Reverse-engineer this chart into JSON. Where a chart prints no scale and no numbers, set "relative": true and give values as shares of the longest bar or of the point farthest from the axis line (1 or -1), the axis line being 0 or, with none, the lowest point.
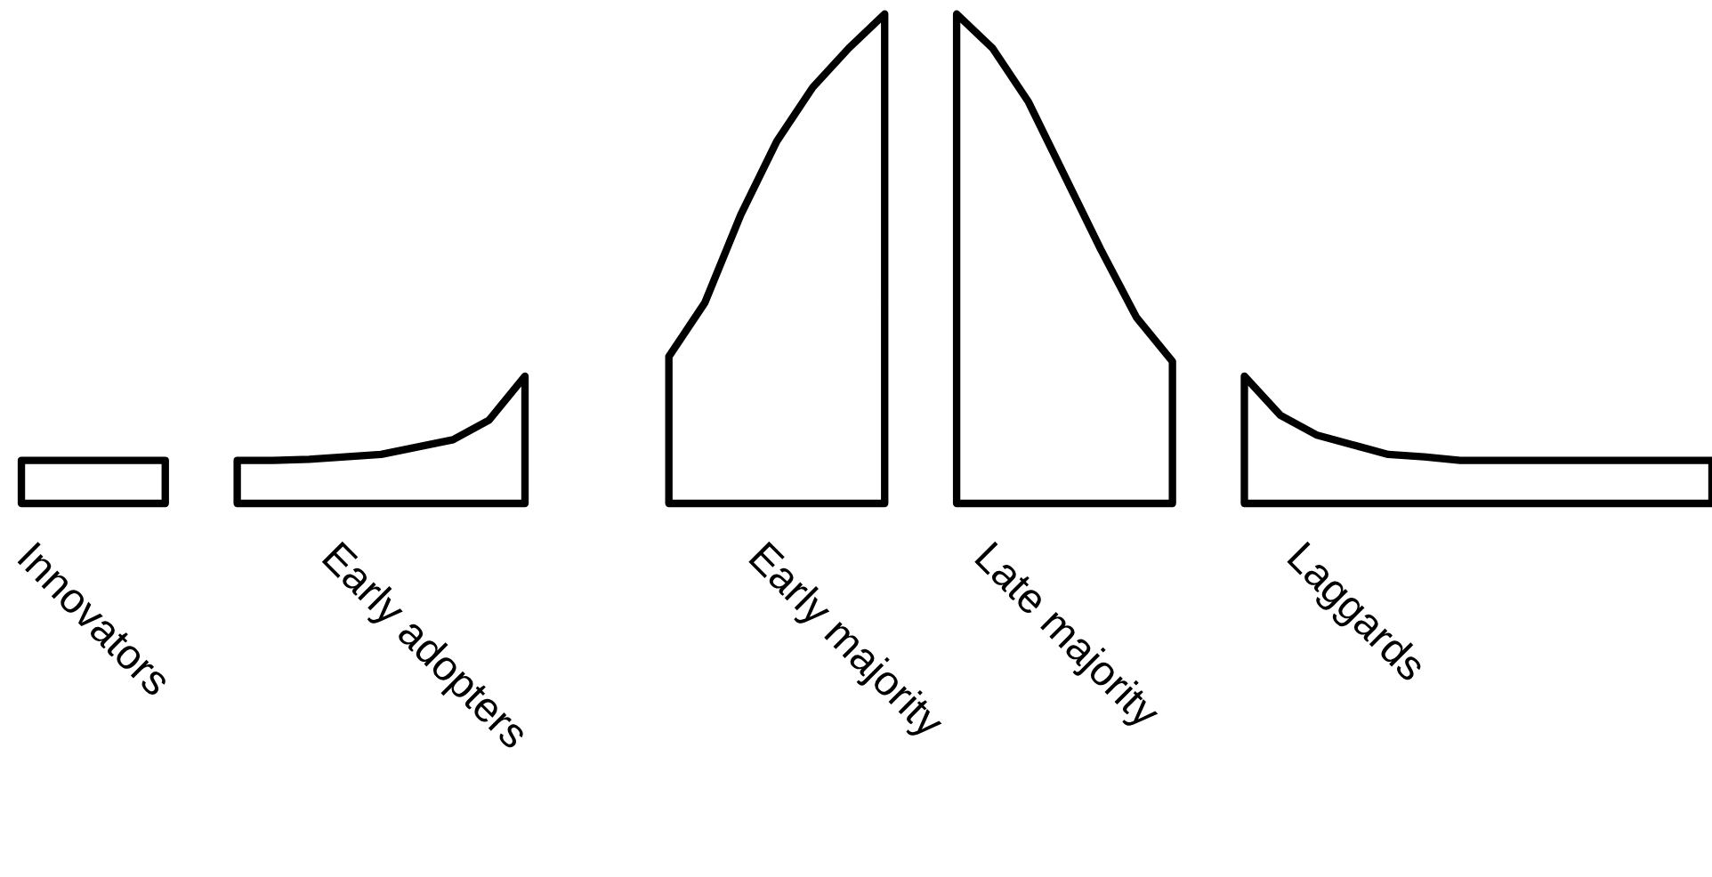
{
  "chart_data": {
    "type": "area",
    "relative": true,
    "tick_labels": false,
    "categories": [
      null,
      null,
      null,
      null,
      null,
      null,
      null,
      null,
      null,
      null,
      null,
      null,
      null,
      null,
      null,
      null,
      null,
      null,
      null,
      null,
      null,
      null,
      null,
      null,
      null,
      null,
      null,
      null,
      null,
      null,
      null,
      null,
      null,
      null,
      null,
      null,
      null,
      null,
      null,
      null,
      null,
      null,
      null,
      null,
      null,
      null,
      null,
      null
    ],
    "series": [
      {
        "name": "Innovators",
        "color": "#000000",
        "values": [
          0.088,
          0.088,
          0.088,
          0.088,
          0.088,
          null,
          null,
          null,
          null,
          null,
          null,
          null,
          null,
          null,
          null,
          null,
          null,
          null,
          null,
          null,
          null,
          null,
          null,
          null,
          null,
          null,
          null,
          null,
          null,
          null,
          null,
          null,
          null,
          null,
          null,
          null,
          null,
          null,
          null,
          null,
          null,
          null,
          null,
          null,
          null,
          null,
          null,
          null
        ]
      },
      {
        "name": "Early adopters",
        "color": "#000000",
        "values": [
          null,
          null,
          null,
          null,
          null,
          null,
          0.088,
          0.088,
          0.09,
          0.095,
          0.1,
          0.115,
          0.13,
          0.17,
          0.26,
          null,
          null,
          null,
          null,
          null,
          null,
          null,
          null,
          null,
          null,
          null,
          null,
          null,
          null,
          null,
          null,
          null,
          null,
          null,
          null,
          null,
          null,
          null,
          null,
          null,
          null,
          null,
          null,
          null,
          null,
          null,
          null,
          null
        ]
      },
      {
        "name": "Early majority",
        "color": "#000000",
        "values": [
          null,
          null,
          null,
          null,
          null,
          null,
          null,
          null,
          null,
          null,
          null,
          null,
          null,
          null,
          null,
          null,
          null,
          null,
          0.3,
          0.41,
          0.59,
          0.74,
          0.85,
          0.93,
          1,
          null,
          null,
          null,
          null,
          null,
          null,
          null,
          null,
          null,
          null,
          null,
          null,
          null,
          null,
          null,
          null,
          null,
          null,
          null,
          null,
          null,
          null,
          null
        ]
      },
      {
        "name": "Late majority",
        "color": "#000000",
        "values": [
          null,
          null,
          null,
          null,
          null,
          null,
          null,
          null,
          null,
          null,
          null,
          null,
          null,
          null,
          null,
          null,
          null,
          null,
          null,
          null,
          null,
          null,
          null,
          null,
          null,
          null,
          1,
          0.93,
          0.82,
          0.67,
          0.52,
          0.38,
          0.29,
          null,
          null,
          null,
          null,
          null,
          null,
          null,
          null,
          null,
          null,
          null,
          null,
          null,
          null,
          null
        ]
      },
      {
        "name": "Laggards",
        "color": "#000000",
        "values": [
          null,
          null,
          null,
          null,
          null,
          null,
          null,
          null,
          null,
          null,
          null,
          null,
          null,
          null,
          null,
          null,
          null,
          null,
          null,
          null,
          null,
          null,
          null,
          null,
          null,
          null,
          null,
          null,
          null,
          null,
          null,
          null,
          null,
          null,
          0.26,
          0.18,
          0.14,
          0.12,
          0.1,
          0.095,
          0.088,
          0.088,
          0.088,
          0.088,
          0.088,
          0.088,
          0.088,
          0.088
        ]
      }
    ]
  }
}
